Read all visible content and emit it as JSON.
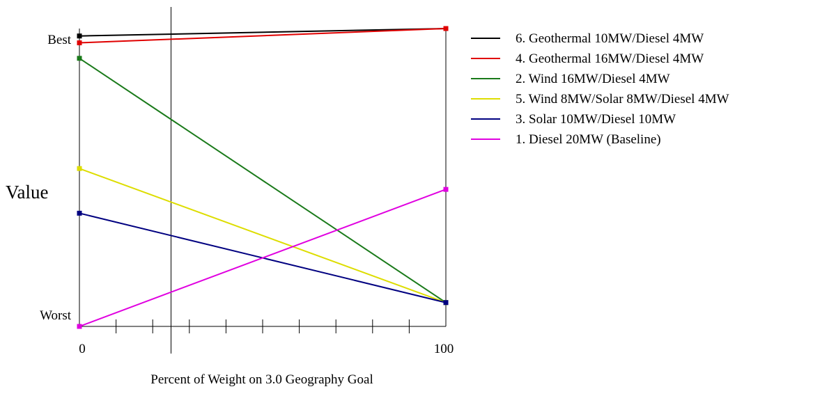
{
  "chart_data": {
    "type": "line",
    "xlabel": "Percent of Weight on 3.0 Geography Goal",
    "ylabel": "Value",
    "x_tick_labels": [
      "0",
      "100"
    ],
    "y_tick_labels": {
      "top": "Best",
      "bottom": "Worst"
    },
    "xlim": [
      0,
      100
    ],
    "ylim": [
      0,
      1
    ],
    "x": [
      0,
      100
    ],
    "current_weight_marker": 25,
    "legend_position": "right",
    "grid": false,
    "series": [
      {
        "name": "6. Geothermal 10MW/Diesel 4MW",
        "color": "#000000",
        "values": [
          0.975,
          1.0
        ]
      },
      {
        "name": "4. Geothermal 16MW/Diesel 4MW",
        "color": "#e00000",
        "values": [
          0.952,
          1.0
        ]
      },
      {
        "name": "2. Wind 16MW/Diesel 4MW",
        "color": "#1a7a1a",
        "values": [
          0.9,
          0.08
        ]
      },
      {
        "name": "5. Wind 8MW/Solar 8MW/Diesel 4MW",
        "color": "#dddd00",
        "values": [
          0.53,
          0.08
        ]
      },
      {
        "name": "3. Solar 10MW/Diesel 10MW",
        "color": "#000080",
        "values": [
          0.38,
          0.08
        ]
      },
      {
        "name": "1. Diesel 20MW (Baseline)",
        "color": "#e000e0",
        "values": [
          0.0,
          0.46
        ]
      }
    ]
  }
}
